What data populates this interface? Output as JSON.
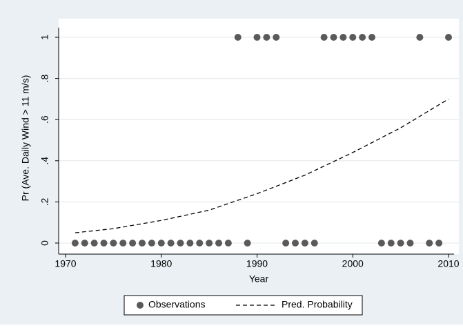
{
  "chart_data": {
    "type": "scatter",
    "xlabel": "Year",
    "ylabel": "Pr (Ave. Daily Wind > 11 m/s)",
    "xlim": [
      1970,
      2010
    ],
    "xticks": [
      1970,
      1980,
      1990,
      2000,
      2010
    ],
    "ylim": [
      0,
      1
    ],
    "yticks": [
      0,
      {
        "value": 0.2,
        "label": ".2"
      },
      {
        "value": 0.4,
        "label": ".4"
      },
      {
        "value": 0.6,
        "label": ".6"
      },
      {
        "value": 0.8,
        "label": ".8"
      },
      1
    ],
    "grid": true,
    "legend": "bottom",
    "series": [
      {
        "name": "Observations",
        "type": "scatter",
        "color": "#5a5a5a",
        "x": [
          1971,
          1972,
          1973,
          1974,
          1975,
          1976,
          1977,
          1978,
          1979,
          1980,
          1981,
          1982,
          1983,
          1984,
          1985,
          1986,
          1987,
          1988,
          1989,
          1990,
          1991,
          1992,
          1993,
          1994,
          1995,
          1996,
          1997,
          1998,
          1999,
          2000,
          2001,
          2002,
          2003,
          2004,
          2005,
          2006,
          2007,
          2008,
          2009,
          2010
        ],
        "values": [
          0,
          0,
          0,
          0,
          0,
          0,
          0,
          0,
          0,
          0,
          0,
          0,
          0,
          0,
          0,
          0,
          0,
          1,
          0,
          1,
          1,
          1,
          0,
          0,
          0,
          0,
          1,
          1,
          1,
          1,
          1,
          1,
          0,
          0,
          0,
          0,
          1,
          0,
          0,
          1
        ]
      },
      {
        "name": "Pred. Probability",
        "type": "line",
        "color": "#000000",
        "x": [
          1971,
          1975,
          1980,
          1985,
          1990,
          1995,
          2000,
          2005,
          2010
        ],
        "values": [
          0.05,
          0.07,
          0.11,
          0.16,
          0.24,
          0.33,
          0.44,
          0.56,
          0.7
        ]
      }
    ]
  }
}
